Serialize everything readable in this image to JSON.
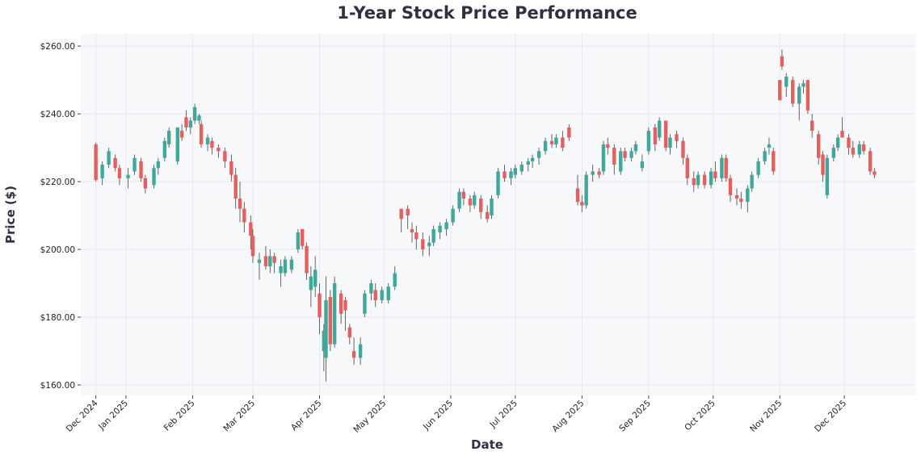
{
  "chart_data": {
    "type": "candlestick",
    "title": "1-Year Stock Price Performance",
    "xlabel": "Date",
    "ylabel": "Price ($)",
    "xlim": [
      "2024-12-11",
      "2026-01-03"
    ],
    "ylim": [
      156.9,
      263.6
    ],
    "grid": true,
    "legend": "none",
    "colors": {
      "up": "#3fa89b",
      "down": "#e4605e",
      "wick": "#555555",
      "plot_bg": "#f7f8fa",
      "grid": "#e6e8ec",
      "title": "#2d3142"
    },
    "yticks": [
      {
        "value": 160,
        "label": "$160.00"
      },
      {
        "value": 180,
        "label": "$180.00"
      },
      {
        "value": 200,
        "label": "$200.00"
      },
      {
        "value": 220,
        "label": "$220.00"
      },
      {
        "value": 240,
        "label": "$240.00"
      },
      {
        "value": 260,
        "label": "$260.00"
      }
    ],
    "xticks": [
      {
        "date": "2024-12-18",
        "label": "Dec 2024"
      },
      {
        "date": "2025-01-01",
        "label": "Jan 2025"
      },
      {
        "date": "2025-02-01",
        "label": "Feb 2025"
      },
      {
        "date": "2025-03-01",
        "label": "Mar 2025"
      },
      {
        "date": "2025-04-01",
        "label": "Apr 2025"
      },
      {
        "date": "2025-05-01",
        "label": "May 2025"
      },
      {
        "date": "2025-06-01",
        "label": "Jun 2025"
      },
      {
        "date": "2025-07-01",
        "label": "Jul 2025"
      },
      {
        "date": "2025-08-01",
        "label": "Aug 2025"
      },
      {
        "date": "2025-09-01",
        "label": "Sep 2025"
      },
      {
        "date": "2025-10-01",
        "label": "Oct 2025"
      },
      {
        "date": "2025-11-01",
        "label": "Nov 2025"
      },
      {
        "date": "2025-12-01",
        "label": "Dec 2025"
      }
    ],
    "columns": [
      "date",
      "open",
      "high",
      "low",
      "close"
    ],
    "candles": [
      [
        "2024-12-18",
        231,
        231.5,
        220,
        220.5
      ],
      [
        "2024-12-21",
        221,
        226,
        219,
        225
      ],
      [
        "2024-12-24",
        225,
        230,
        224,
        229
      ],
      [
        "2024-12-27",
        227,
        228,
        223,
        224
      ],
      [
        "2024-12-29",
        224,
        225,
        219,
        221
      ],
      [
        "2025-01-02",
        221,
        224,
        218,
        222
      ],
      [
        "2025-01-05",
        223,
        228,
        222,
        227
      ],
      [
        "2025-01-08",
        226,
        227,
        220,
        221
      ],
      [
        "2025-01-10",
        221,
        222,
        216.5,
        218
      ],
      [
        "2025-01-14",
        219,
        225,
        218,
        224
      ],
      [
        "2025-01-16",
        224,
        227,
        222,
        226
      ],
      [
        "2025-01-19",
        227,
        233,
        226,
        232
      ],
      [
        "2025-01-21",
        231,
        236,
        230,
        235
      ],
      [
        "2025-01-25",
        226,
        236,
        225,
        236
      ],
      [
        "2025-01-27",
        235,
        237,
        232,
        233
      ],
      [
        "2025-01-29",
        239,
        241,
        235,
        236
      ],
      [
        "2025-01-31",
        236,
        239,
        234,
        238
      ],
      [
        "2025-02-02",
        238,
        243,
        237,
        242
      ],
      [
        "2025-02-04",
        238,
        240,
        237,
        239.5
      ],
      [
        "2025-02-05",
        237,
        238,
        230,
        231
      ],
      [
        "2025-02-08",
        231,
        234,
        229,
        233
      ],
      [
        "2025-02-10",
        232,
        233,
        228,
        230
      ],
      [
        "2025-02-13",
        230,
        231,
        227,
        229
      ],
      [
        "2025-02-16",
        229,
        230,
        224,
        226
      ],
      [
        "2025-02-19",
        226,
        228,
        220,
        222
      ],
      [
        "2025-02-21",
        222,
        224,
        212,
        215
      ],
      [
        "2025-02-23",
        215,
        220,
        208,
        212
      ],
      [
        "2025-02-25",
        212,
        214,
        205,
        208
      ],
      [
        "2025-02-28",
        208,
        210,
        200,
        204
      ],
      [
        "2025-03-01",
        204,
        206,
        196,
        198
      ],
      [
        "2025-03-04",
        196,
        199,
        191,
        197
      ],
      [
        "2025-03-07",
        198,
        201,
        194,
        195
      ],
      [
        "2025-03-09",
        195,
        200,
        193,
        198
      ],
      [
        "2025-03-11",
        198,
        199,
        193,
        196
      ],
      [
        "2025-03-14",
        193,
        197,
        189,
        195
      ],
      [
        "2025-03-16",
        193,
        198,
        192,
        197
      ],
      [
        "2025-03-19",
        194,
        198,
        193,
        197
      ],
      [
        "2025-03-22",
        200,
        206,
        199,
        205
      ],
      [
        "2025-03-24",
        206,
        206,
        200,
        201
      ],
      [
        "2025-03-26",
        201,
        202,
        191,
        193
      ],
      [
        "2025-03-28",
        188,
        195,
        183,
        192
      ],
      [
        "2025-03-30",
        189,
        198,
        186,
        194
      ],
      [
        "2025-04-01",
        187,
        190,
        175,
        180
      ],
      [
        "2025-04-03",
        170,
        178,
        164,
        176
      ],
      [
        "2025-04-04",
        168,
        192,
        161,
        185
      ],
      [
        "2025-04-06",
        186,
        188,
        170,
        172
      ],
      [
        "2025-04-08",
        172,
        192,
        171,
        190
      ],
      [
        "2025-04-11",
        187,
        188,
        178,
        181
      ],
      [
        "2025-04-13",
        185,
        186,
        176,
        182
      ],
      [
        "2025-04-15",
        177,
        178,
        172,
        174
      ],
      [
        "2025-04-17",
        170,
        174,
        166,
        168
      ],
      [
        "2025-04-20",
        168,
        174,
        166,
        172
      ],
      [
        "2025-04-22",
        181,
        188,
        180,
        187
      ],
      [
        "2025-04-25",
        187,
        191,
        185,
        190
      ],
      [
        "2025-04-27",
        188,
        190,
        183,
        185
      ],
      [
        "2025-04-30",
        185,
        189,
        184,
        188
      ],
      [
        "2025-05-03",
        185,
        190,
        184,
        189
      ],
      [
        "2025-05-06",
        189,
        195,
        188,
        193
      ],
      [
        "2025-05-09",
        212,
        212,
        205,
        209
      ],
      [
        "2025-05-12",
        212,
        213,
        206,
        210
      ],
      [
        "2025-05-14",
        206,
        208,
        202,
        205
      ],
      [
        "2025-05-16",
        205,
        207,
        200,
        203
      ],
      [
        "2025-05-19",
        203,
        205,
        198,
        200
      ],
      [
        "2025-05-22",
        201,
        204,
        198,
        202
      ],
      [
        "2025-05-24",
        202,
        207,
        201,
        206
      ],
      [
        "2025-05-27",
        205,
        208,
        203,
        207
      ],
      [
        "2025-05-30",
        206,
        209,
        204,
        208
      ],
      [
        "2025-06-02",
        208,
        213,
        207,
        212
      ],
      [
        "2025-06-05",
        212,
        218,
        211,
        217
      ],
      [
        "2025-06-07",
        217,
        218,
        213,
        215
      ],
      [
        "2025-06-10",
        215,
        216,
        211,
        213
      ],
      [
        "2025-06-12",
        213,
        217,
        212,
        216
      ],
      [
        "2025-06-15",
        215,
        216,
        209,
        211
      ],
      [
        "2025-06-18",
        211,
        213,
        208,
        209
      ],
      [
        "2025-06-20",
        210,
        216,
        209,
        215
      ],
      [
        "2025-06-23",
        216,
        224,
        215,
        223
      ],
      [
        "2025-06-26",
        223,
        225,
        220,
        221
      ],
      [
        "2025-06-29",
        221,
        224,
        219,
        223
      ],
      [
        "2025-07-01",
        222,
        225,
        221,
        224
      ],
      [
        "2025-07-04",
        223,
        226,
        222,
        225
      ],
      [
        "2025-07-07",
        225,
        227,
        223,
        226
      ],
      [
        "2025-07-09",
        226,
        228,
        224,
        227
      ],
      [
        "2025-07-12",
        227,
        230,
        225,
        229
      ],
      [
        "2025-07-15",
        229,
        233,
        228,
        232
      ],
      [
        "2025-07-18",
        232,
        234,
        230,
        231
      ],
      [
        "2025-07-20",
        231,
        234,
        230,
        233
      ],
      [
        "2025-07-23",
        233,
        235,
        229,
        230
      ],
      [
        "2025-07-26",
        236,
        237,
        232,
        233
      ],
      [
        "2025-07-30",
        218,
        222,
        213,
        214
      ],
      [
        "2025-08-01",
        214,
        216,
        211,
        213
      ],
      [
        "2025-08-03",
        213,
        223,
        212,
        222
      ],
      [
        "2025-08-06",
        222,
        225,
        220,
        223
      ],
      [
        "2025-08-09",
        223,
        224,
        221,
        222
      ],
      [
        "2025-08-11",
        223,
        232,
        222,
        231
      ],
      [
        "2025-08-13",
        231,
        233,
        228,
        230
      ],
      [
        "2025-08-16",
        230,
        231,
        222,
        225
      ],
      [
        "2025-08-19",
        223,
        230,
        222,
        229
      ],
      [
        "2025-08-21",
        229,
        230,
        226,
        227
      ],
      [
        "2025-08-24",
        227,
        230,
        226,
        229
      ],
      [
        "2025-08-26",
        229,
        232,
        228,
        231
      ],
      [
        "2025-08-29",
        224,
        228,
        223,
        226
      ],
      [
        "2025-09-01",
        229,
        236,
        228,
        235
      ],
      [
        "2025-09-04",
        236,
        237,
        229,
        231
      ],
      [
        "2025-09-06",
        233,
        239,
        232,
        238
      ],
      [
        "2025-09-09",
        238,
        238,
        229,
        230
      ],
      [
        "2025-09-11",
        230,
        234,
        228,
        233
      ],
      [
        "2025-09-14",
        234,
        235,
        230,
        232
      ],
      [
        "2025-09-17",
        232,
        233,
        225,
        227
      ],
      [
        "2025-09-19",
        227,
        228,
        219,
        221
      ],
      [
        "2025-09-22",
        221,
        223,
        217,
        219
      ],
      [
        "2025-09-24",
        219,
        223,
        218,
        222
      ],
      [
        "2025-09-27",
        222,
        223,
        218,
        219
      ],
      [
        "2025-09-30",
        219,
        224,
        218,
        223
      ],
      [
        "2025-10-02",
        223,
        226,
        220,
        221
      ],
      [
        "2025-10-05",
        221,
        228,
        220,
        227
      ],
      [
        "2025-10-07",
        227,
        228,
        220,
        221
      ],
      [
        "2025-10-09",
        221,
        222,
        214,
        216
      ],
      [
        "2025-10-12",
        216,
        218,
        213,
        215
      ],
      [
        "2025-10-14",
        215,
        217,
        212,
        214
      ],
      [
        "2025-10-17",
        214,
        219,
        211,
        218
      ],
      [
        "2025-10-19",
        218,
        223,
        217,
        222
      ],
      [
        "2025-10-22",
        222,
        227,
        221,
        226
      ],
      [
        "2025-10-25",
        226,
        230,
        225,
        229
      ],
      [
        "2025-10-27",
        230,
        233,
        228,
        231
      ],
      [
        "2025-10-29",
        229,
        230,
        222,
        223
      ],
      [
        "2025-11-01",
        250,
        250,
        244,
        244
      ],
      [
        "2025-11-02",
        257,
        259,
        253,
        254
      ],
      [
        "2025-11-04",
        248,
        252,
        245,
        251
      ],
      [
        "2025-11-07",
        250,
        251,
        242,
        243
      ],
      [
        "2025-11-10",
        243,
        249,
        238,
        248
      ],
      [
        "2025-11-12",
        248,
        250,
        246,
        249
      ],
      [
        "2025-11-14",
        250,
        250,
        240,
        241
      ],
      [
        "2025-11-16",
        238,
        240,
        233,
        235
      ],
      [
        "2025-11-19",
        234,
        235,
        225,
        227
      ],
      [
        "2025-11-21",
        228,
        229,
        220,
        222
      ],
      [
        "2025-11-23",
        216,
        228,
        215,
        227
      ],
      [
        "2025-11-26",
        227,
        231,
        226,
        230
      ],
      [
        "2025-11-28",
        230,
        234,
        229,
        233
      ],
      [
        "2025-11-30",
        235,
        239,
        233,
        233
      ],
      [
        "2025-12-03",
        233,
        234,
        228,
        230
      ],
      [
        "2025-12-05",
        230,
        232,
        227,
        228
      ],
      [
        "2025-12-08",
        228,
        232,
        227,
        231
      ],
      [
        "2025-12-10",
        231,
        232,
        228,
        229
      ],
      [
        "2025-12-13",
        229,
        230,
        222,
        223
      ],
      [
        "2025-12-15",
        223,
        224,
        221,
        222
      ]
    ]
  }
}
